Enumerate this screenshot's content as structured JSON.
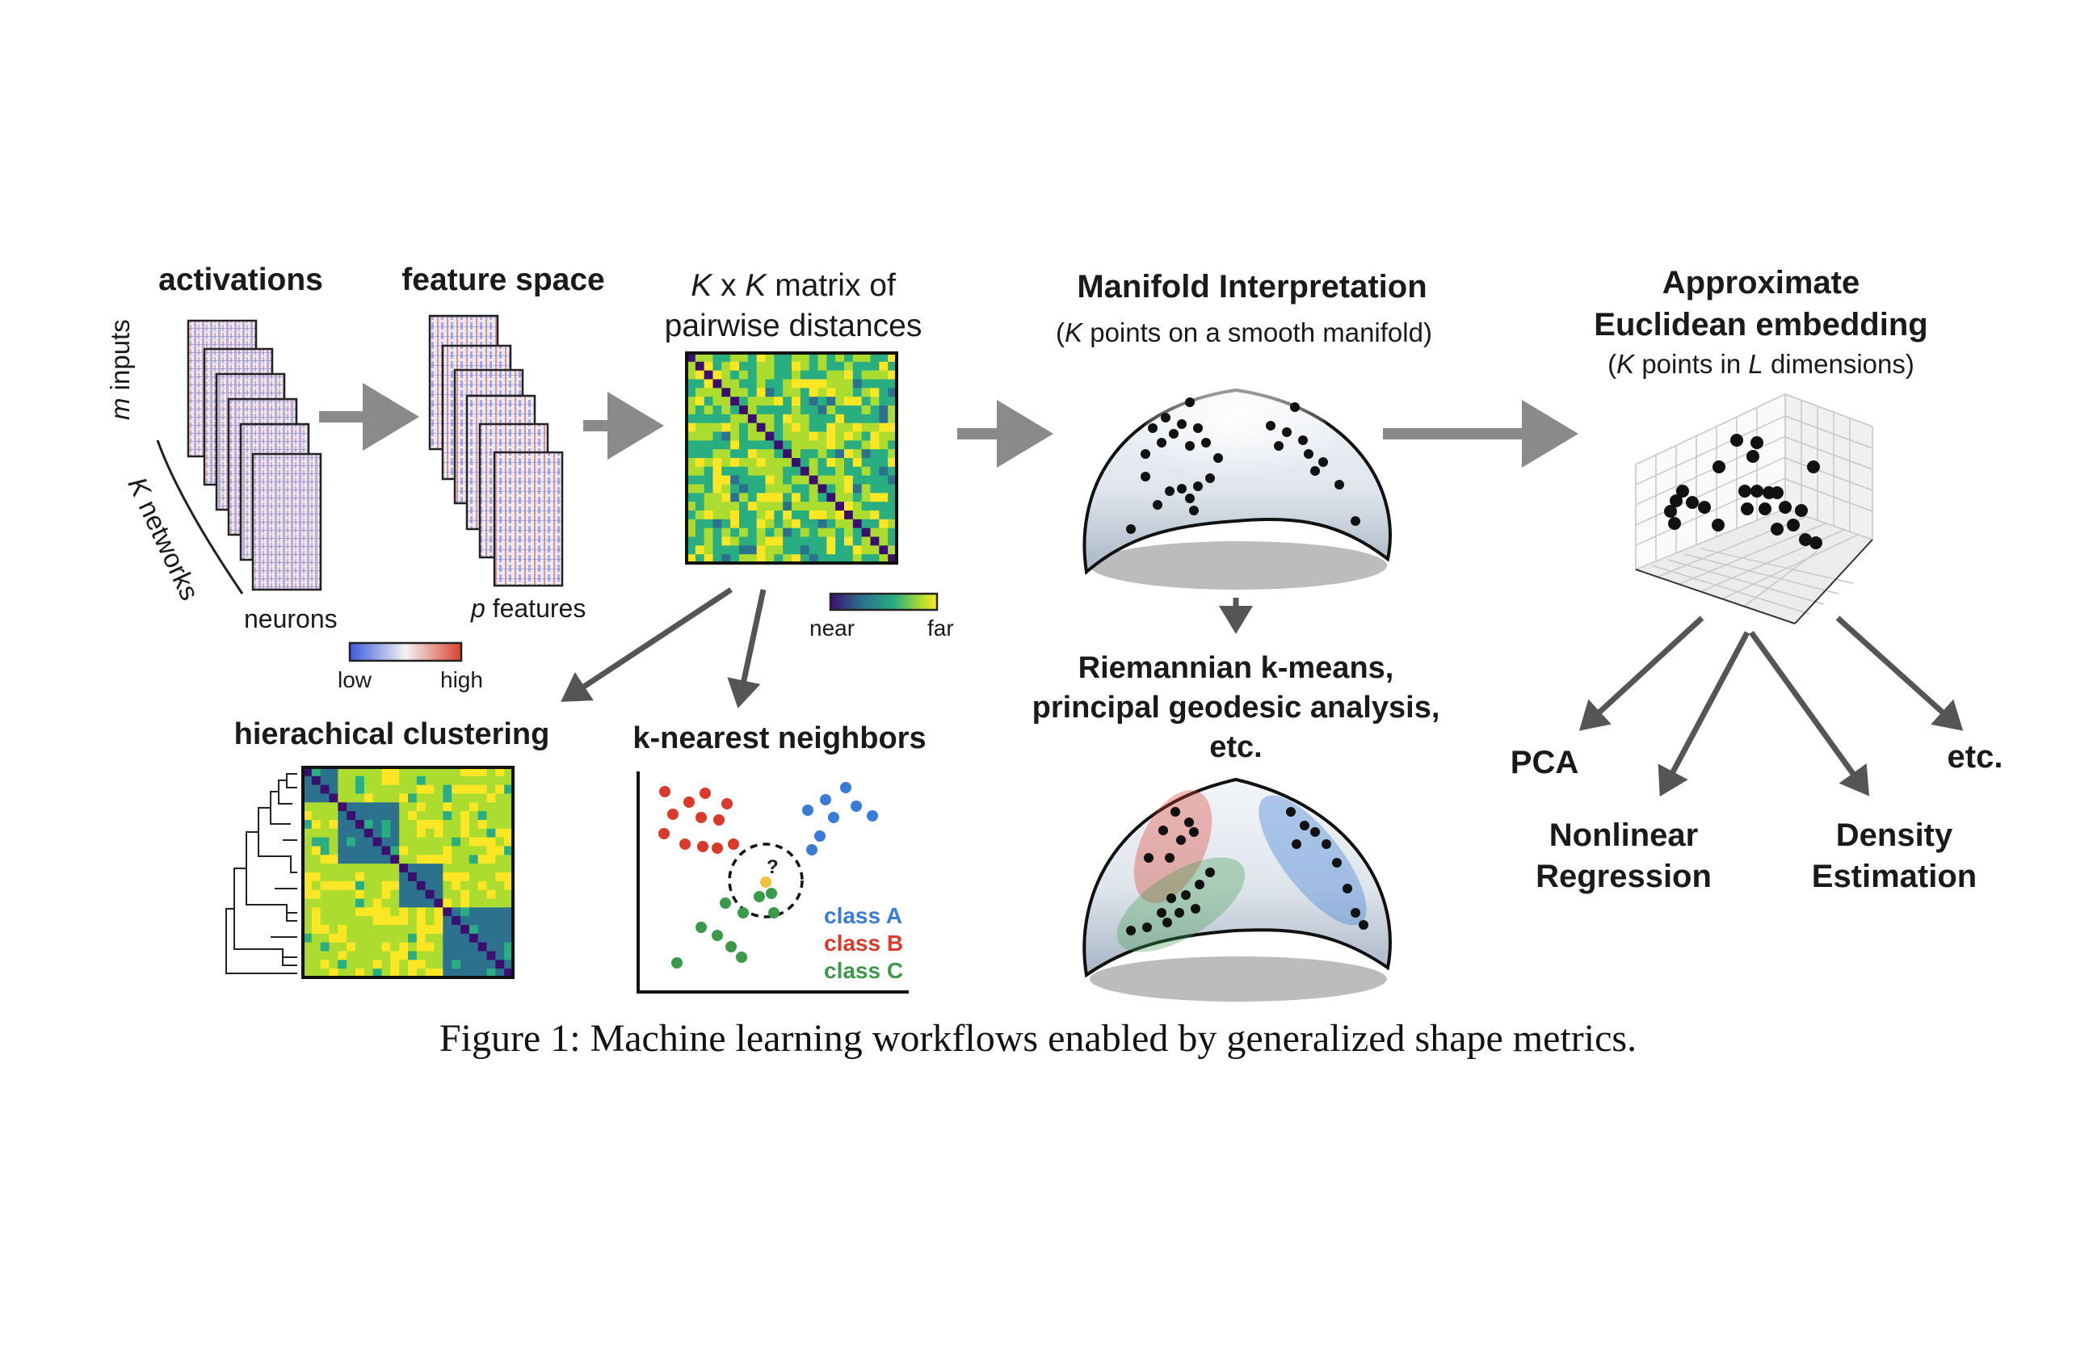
{
  "panels": {
    "activations": {
      "title": "activations",
      "side_label_var": "m",
      "side_label_rest": " inputs",
      "networks_var": "K",
      "networks_rest": " networks",
      "bottom_label": "neurons",
      "colorbar_low": "low",
      "colorbar_high": "high",
      "colorbar_colors": [
        "#3b5bdb",
        "#f2f2f2",
        "#d9432f"
      ]
    },
    "feature_space": {
      "title": "feature space",
      "bottom_label_var": "p",
      "bottom_label_rest": " features"
    },
    "distance_matrix": {
      "title_line1_a": "K",
      "title_line1_b": " x ",
      "title_line1_c": "K",
      "title_line1_d": " matrix of",
      "title_line2": "pairwise distances",
      "colorbar_near": "near",
      "colorbar_far": "far",
      "colormap": [
        "#3b0f70",
        "#2c728e",
        "#28ae80",
        "#addc30",
        "#fde725"
      ]
    },
    "clustering": {
      "title": "hierachical clustering"
    },
    "knn": {
      "title": "k-nearest neighbors",
      "query_mark": "?",
      "classes": [
        {
          "label": "class A",
          "color": "#3a7bd5"
        },
        {
          "label": "class B",
          "color": "#d93a2b"
        },
        {
          "label": "class C",
          "color": "#3a9a4a"
        }
      ],
      "query_color": "#f0c040"
    },
    "manifold": {
      "title": "Manifold Interpretation",
      "subtitle_a": "(",
      "subtitle_var": "K",
      "subtitle_rest": " points on a smooth manifold)"
    },
    "riemannian": {
      "line1": "Riemannian k-means,",
      "line2": "principal geodesic analysis,",
      "line3": "etc."
    },
    "embedding": {
      "title_line1": "Approximate",
      "title_line2": "Euclidean embedding",
      "subtitle_a": "(",
      "subtitle_var1": "K",
      "subtitle_mid": " points in ",
      "subtitle_var2": "L",
      "subtitle_rest": " dimensions)"
    },
    "outputs": {
      "pca": "PCA",
      "etc": "etc.",
      "nonlinear_1": "Nonlinear",
      "nonlinear_2": "Regression",
      "density_1": "Density",
      "density_2": "Estimation"
    }
  },
  "caption": "Figure 1: Machine learning workflows enabled by generalized shape metrics.",
  "colors": {
    "arrow": "#8a8a8a",
    "dark_arrow": "#555555",
    "manifold_fill": "#c9d3df",
    "shadow": "#b8b8b8"
  }
}
